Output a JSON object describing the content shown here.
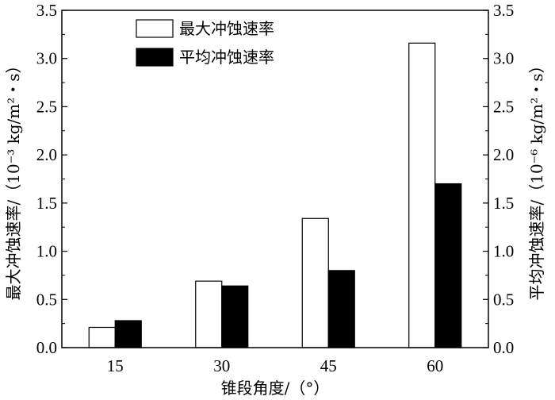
{
  "chart_data": {
    "type": "bar",
    "categories": [
      "15",
      "30",
      "45",
      "60"
    ],
    "series": [
      {
        "name": "最大冲蚀速率",
        "values": [
          0.21,
          0.69,
          1.34,
          3.16
        ],
        "fill": "#ffffff",
        "axis": "left"
      },
      {
        "name": "平均冲蚀速率",
        "values": [
          0.28,
          0.64,
          0.8,
          1.7
        ],
        "fill": "#000000",
        "axis": "right"
      }
    ],
    "xlabel": "锥段角度/（°）",
    "ylabel": "最大冲蚀速率/（10⁻³ kg/m²・s）",
    "ylabel_right": "平均冲蚀速率/（10⁻⁶ kg/m²・s）",
    "ylim": [
      0,
      3.5
    ],
    "ylim_right": [
      0,
      3.5
    ],
    "yticks": [
      "0.0",
      "0.5",
      "1.0",
      "1.5",
      "2.0",
      "2.5",
      "3.0",
      "3.5"
    ],
    "grid": false,
    "legend_position": "top-left"
  }
}
